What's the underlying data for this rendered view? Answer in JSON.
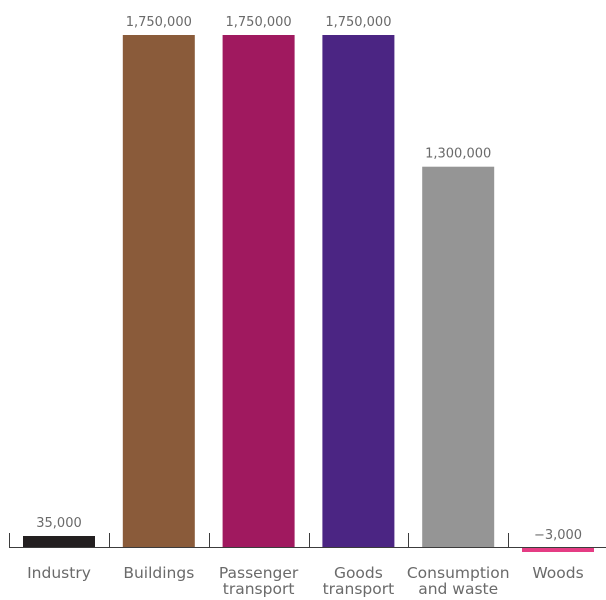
{
  "chart_data": {
    "type": "bar",
    "categories": [
      [
        "Industry"
      ],
      [
        "Buildings"
      ],
      [
        "Passenger",
        "transport"
      ],
      [
        "Goods",
        "transport"
      ],
      [
        "Consumption",
        "and waste"
      ],
      [
        "Woods"
      ]
    ],
    "values": [
      35000,
      1750000,
      1750000,
      1750000,
      1300000,
      -3000
    ],
    "value_labels": [
      "35,000",
      "1,750,000",
      "1,750,000",
      "1,750,000",
      "1,300,000",
      "−3,000"
    ],
    "colors": [
      "#231f20",
      "#8a5b3a",
      "#a0195f",
      "#4b2583",
      "#959595",
      "#e53c84"
    ],
    "ylim": [
      0,
      1750000
    ],
    "grid": false,
    "title": "",
    "xlabel": "",
    "ylabel": ""
  }
}
